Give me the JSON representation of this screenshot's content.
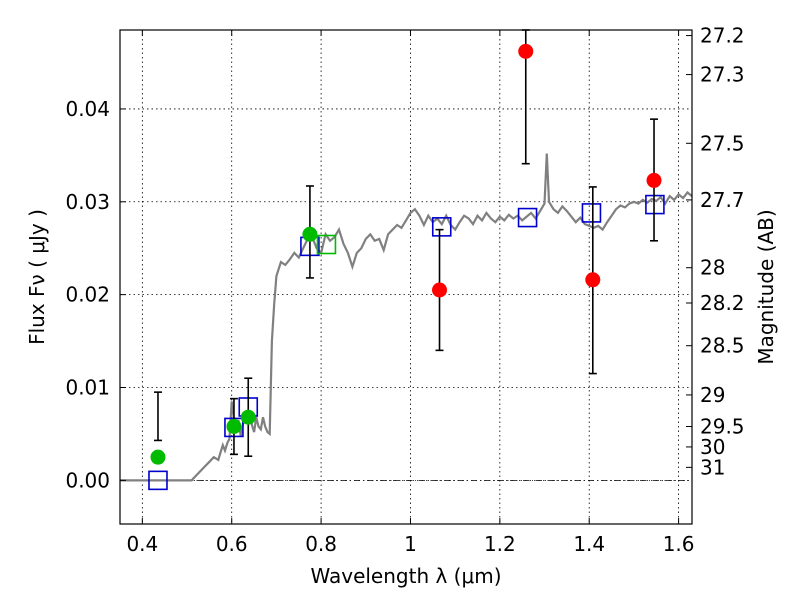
{
  "chart_data": {
    "type": "scatter",
    "xlabel": "Wavelength  λ (μm)",
    "ylabel": "Flux  Fν  ( μJy )",
    "ylabel_right": "Magnitude (AB)",
    "xlim": [
      0.35,
      1.63
    ],
    "ylim": [
      -0.0047,
      0.0485
    ],
    "grid": true,
    "x_ticks": [
      {
        "value": 0.4,
        "label": "0.4"
      },
      {
        "value": 0.6,
        "label": "0.6"
      },
      {
        "value": 0.8,
        "label": "0.8"
      },
      {
        "value": 1.0,
        "label": "1"
      },
      {
        "value": 1.2,
        "label": "1.2"
      },
      {
        "value": 1.4,
        "label": "1.4"
      },
      {
        "value": 1.6,
        "label": "1.6"
      }
    ],
    "y_ticks": [
      {
        "value": 0.0,
        "label": "0.00"
      },
      {
        "value": 0.01,
        "label": "0.01"
      },
      {
        "value": 0.02,
        "label": "0.02"
      },
      {
        "value": 0.03,
        "label": "0.03"
      },
      {
        "value": 0.04,
        "label": "0.04"
      }
    ],
    "right_ticks": [
      {
        "flux": 0.0479,
        "label": "27.2"
      },
      {
        "flux": 0.0437,
        "label": "27.3"
      },
      {
        "flux": 0.0363,
        "label": "27.5"
      },
      {
        "flux": 0.0302,
        "label": "27.7"
      },
      {
        "flux": 0.0229,
        "label": "28"
      },
      {
        "flux": 0.0191,
        "label": "28.2"
      },
      {
        "flux": 0.0145,
        "label": "28.5"
      },
      {
        "flux": 0.0092,
        "label": "29"
      },
      {
        "flux": 0.0058,
        "label": "29.5"
      },
      {
        "flux": 0.0036,
        "label": "30"
      },
      {
        "flux": 0.0014,
        "label": "31"
      }
    ],
    "colors": {
      "model": "#808080",
      "detections": "#00bb00",
      "upper": "#ff0000",
      "model_box": "#0000cc",
      "model_box_green": "#00bb00"
    },
    "series": [
      {
        "marker": "circle",
        "color": "#00bb00",
        "points": [
          {
            "x": 0.435,
            "y": 0.0025,
            "err_lo": 0.0043,
            "err_hi": 0.0095
          },
          {
            "x": 0.605,
            "y": 0.0058,
            "err_lo": 0.0028,
            "err_hi": 0.0088
          },
          {
            "x": 0.637,
            "y": 0.0068,
            "err_lo": 0.0026,
            "err_hi": 0.011
          },
          {
            "x": 0.775,
            "y": 0.0265,
            "err_lo": 0.0218,
            "err_hi": 0.0317
          }
        ]
      },
      {
        "marker": "circle",
        "color": "#ff0000",
        "points": [
          {
            "x": 1.065,
            "y": 0.0205,
            "err_lo": 0.014,
            "err_hi": 0.027
          },
          {
            "x": 1.258,
            "y": 0.0462,
            "err_lo": 0.0341,
            "err_hi": 0.0485
          },
          {
            "x": 1.408,
            "y": 0.0216,
            "err_lo": 0.0115,
            "err_hi": 0.0316
          },
          {
            "x": 1.545,
            "y": 0.0323,
            "err_lo": 0.0258,
            "err_hi": 0.0389
          }
        ]
      },
      {
        "marker": "square",
        "color": "#0000cc",
        "points": [
          {
            "x": 0.435,
            "y": 0.0
          },
          {
            "x": 0.605,
            "y": 0.0057
          },
          {
            "x": 0.637,
            "y": 0.0079
          },
          {
            "x": 0.775,
            "y": 0.0252
          },
          {
            "x": 1.07,
            "y": 0.0273
          },
          {
            "x": 1.262,
            "y": 0.0283
          },
          {
            "x": 1.405,
            "y": 0.0288
          },
          {
            "x": 1.547,
            "y": 0.0297
          }
        ]
      },
      {
        "marker": "square",
        "color": "#00bb00",
        "points": [
          {
            "x": 0.812,
            "y": 0.0254
          }
        ]
      }
    ],
    "model_curve": [
      [
        0.35,
        0.0
      ],
      [
        0.51,
        0.0
      ],
      [
        0.54,
        0.0015
      ],
      [
        0.55,
        0.002
      ],
      [
        0.56,
        0.0025
      ],
      [
        0.57,
        0.0022
      ],
      [
        0.575,
        0.003
      ],
      [
        0.58,
        0.0038
      ],
      [
        0.585,
        0.0032
      ],
      [
        0.59,
        0.004
      ],
      [
        0.595,
        0.0045
      ],
      [
        0.6,
        0.0085
      ],
      [
        0.605,
        0.0065
      ],
      [
        0.61,
        0.0055
      ],
      [
        0.615,
        0.0065
      ],
      [
        0.62,
        0.0048
      ],
      [
        0.625,
        0.006
      ],
      [
        0.63,
        0.007
      ],
      [
        0.635,
        0.0062
      ],
      [
        0.64,
        0.0075
      ],
      [
        0.645,
        0.006
      ],
      [
        0.65,
        0.0052
      ],
      [
        0.655,
        0.0068
      ],
      [
        0.66,
        0.0058
      ],
      [
        0.665,
        0.0055
      ],
      [
        0.67,
        0.0068
      ],
      [
        0.675,
        0.0058
      ],
      [
        0.68,
        0.0052
      ],
      [
        0.685,
        0.005
      ],
      [
        0.69,
        0.015
      ],
      [
        0.695,
        0.019
      ],
      [
        0.7,
        0.022
      ],
      [
        0.71,
        0.0235
      ],
      [
        0.72,
        0.0232
      ],
      [
        0.73,
        0.0238
      ],
      [
        0.74,
        0.0245
      ],
      [
        0.75,
        0.024
      ],
      [
        0.76,
        0.025
      ],
      [
        0.77,
        0.026
      ],
      [
        0.78,
        0.0262
      ],
      [
        0.79,
        0.025
      ],
      [
        0.8,
        0.0245
      ],
      [
        0.81,
        0.0265
      ],
      [
        0.82,
        0.0258
      ],
      [
        0.83,
        0.0262
      ],
      [
        0.84,
        0.027
      ],
      [
        0.85,
        0.0255
      ],
      [
        0.86,
        0.0245
      ],
      [
        0.87,
        0.023
      ],
      [
        0.88,
        0.0245
      ],
      [
        0.89,
        0.025
      ],
      [
        0.9,
        0.026
      ],
      [
        0.91,
        0.0265
      ],
      [
        0.92,
        0.0258
      ],
      [
        0.93,
        0.026
      ],
      [
        0.94,
        0.0248
      ],
      [
        0.95,
        0.0265
      ],
      [
        0.96,
        0.027
      ],
      [
        0.97,
        0.0275
      ],
      [
        0.98,
        0.0272
      ],
      [
        0.99,
        0.028
      ],
      [
        1.0,
        0.0288
      ],
      [
        1.01,
        0.0292
      ],
      [
        1.02,
        0.0285
      ],
      [
        1.03,
        0.0275
      ],
      [
        1.04,
        0.0285
      ],
      [
        1.05,
        0.0278
      ],
      [
        1.06,
        0.0282
      ],
      [
        1.07,
        0.0276
      ],
      [
        1.08,
        0.0285
      ],
      [
        1.09,
        0.0275
      ],
      [
        1.1,
        0.027
      ],
      [
        1.11,
        0.0278
      ],
      [
        1.12,
        0.0285
      ],
      [
        1.13,
        0.0282
      ],
      [
        1.14,
        0.0276
      ],
      [
        1.15,
        0.0285
      ],
      [
        1.16,
        0.028
      ],
      [
        1.17,
        0.0288
      ],
      [
        1.18,
        0.0282
      ],
      [
        1.19,
        0.0278
      ],
      [
        1.2,
        0.0284
      ],
      [
        1.21,
        0.028
      ],
      [
        1.22,
        0.0286
      ],
      [
        1.23,
        0.0282
      ],
      [
        1.24,
        0.0285
      ],
      [
        1.25,
        0.028
      ],
      [
        1.26,
        0.0284
      ],
      [
        1.27,
        0.0288
      ],
      [
        1.28,
        0.0282
      ],
      [
        1.29,
        0.029
      ],
      [
        1.3,
        0.0298
      ],
      [
        1.305,
        0.0352
      ],
      [
        1.31,
        0.03
      ],
      [
        1.32,
        0.0292
      ],
      [
        1.33,
        0.0288
      ],
      [
        1.34,
        0.0295
      ],
      [
        1.35,
        0.029
      ],
      [
        1.36,
        0.0284
      ],
      [
        1.37,
        0.0278
      ],
      [
        1.38,
        0.0283
      ],
      [
        1.39,
        0.0276
      ],
      [
        1.4,
        0.0274
      ],
      [
        1.41,
        0.0272
      ],
      [
        1.42,
        0.0274
      ],
      [
        1.43,
        0.027
      ],
      [
        1.44,
        0.0278
      ],
      [
        1.45,
        0.0285
      ],
      [
        1.46,
        0.0292
      ],
      [
        1.47,
        0.0296
      ],
      [
        1.48,
        0.0294
      ],
      [
        1.49,
        0.0298
      ],
      [
        1.5,
        0.03
      ],
      [
        1.51,
        0.0298
      ],
      [
        1.52,
        0.0302
      ],
      [
        1.53,
        0.0299
      ],
      [
        1.54,
        0.0303
      ],
      [
        1.55,
        0.0301
      ],
      [
        1.56,
        0.0305
      ],
      [
        1.57,
        0.0298
      ],
      [
        1.58,
        0.0306
      ],
      [
        1.59,
        0.0302
      ],
      [
        1.6,
        0.0308
      ],
      [
        1.61,
        0.0304
      ],
      [
        1.62,
        0.031
      ],
      [
        1.63,
        0.0306
      ]
    ]
  }
}
